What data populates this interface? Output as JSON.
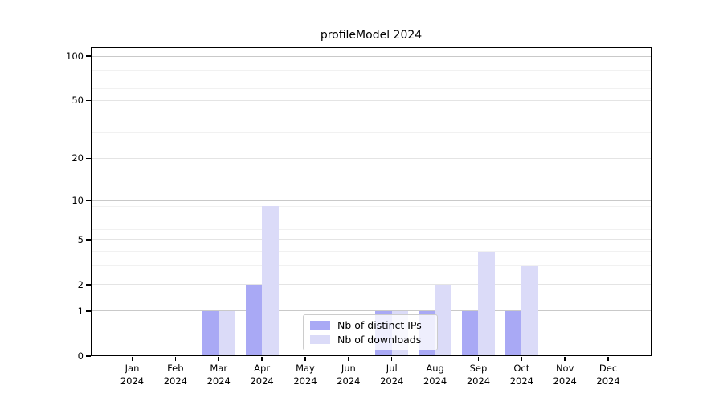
{
  "chart_data": {
    "type": "bar",
    "title": "profileModel 2024",
    "categories": [
      "Jan",
      "Feb",
      "Mar",
      "Apr",
      "May",
      "Jun",
      "Jul",
      "Aug",
      "Sep",
      "Oct",
      "Nov",
      "Dec"
    ],
    "year_label": "2024",
    "series": [
      {
        "name": "Nb of distinct IPs",
        "color": "#a9a9f5",
        "values": [
          0,
          0,
          1,
          2,
          0,
          0,
          1,
          1,
          1,
          1,
          0,
          0
        ]
      },
      {
        "name": "Nb of downloads",
        "color": "#dbdbf8",
        "values": [
          0,
          0,
          1,
          9,
          0,
          0,
          1,
          2,
          4,
          3,
          0,
          0
        ]
      }
    ],
    "y_axis": {
      "scale": "log1p",
      "ticks": [
        0,
        1,
        2,
        5,
        10,
        20,
        50,
        100
      ],
      "major_gridlines": [
        1,
        10,
        100
      ],
      "mid_gridlines": [
        2,
        5,
        20,
        50
      ],
      "minor_gridlines": [
        3,
        4,
        6,
        7,
        8,
        9,
        30,
        40,
        60,
        70,
        80,
        90
      ],
      "ylim": [
        0,
        115
      ]
    },
    "grid": true,
    "legend": {
      "position": "lower center",
      "items": [
        {
          "label": "Nb of distinct IPs",
          "color": "#a9a9f5"
        },
        {
          "label": "Nb of downloads",
          "color": "#dbdbf8"
        }
      ]
    }
  }
}
